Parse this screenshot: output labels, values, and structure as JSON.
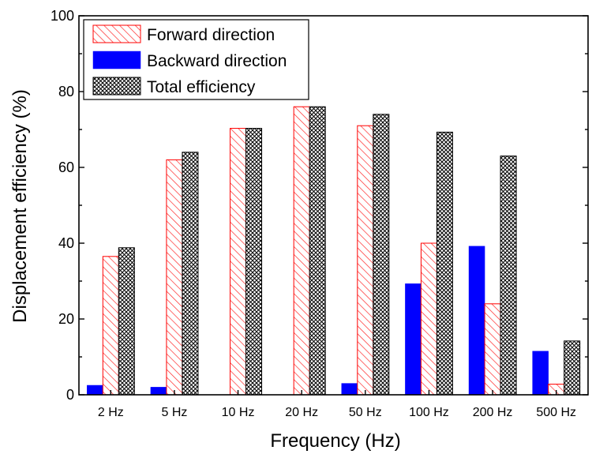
{
  "chart_data": {
    "type": "bar",
    "title": "",
    "xlabel": "Frequency (Hz)",
    "ylabel": "Displacement efficiency (%)",
    "ylim": [
      0,
      100
    ],
    "yticks": [
      0,
      20,
      40,
      60,
      80,
      100
    ],
    "categories": [
      "2 Hz",
      "5 Hz",
      "10 Hz",
      "20 Hz",
      "50 Hz",
      "100 Hz",
      "200 Hz",
      "500 Hz"
    ],
    "series": [
      {
        "name": "Backward direction",
        "values": [
          2.5,
          2.0,
          0,
          0,
          3.0,
          29.3,
          39.2,
          11.5
        ],
        "style": "solid",
        "color": "#0000ff"
      },
      {
        "name": "Forward direction",
        "values": [
          36.5,
          62.0,
          70.3,
          76.0,
          71.0,
          40.0,
          24.0,
          2.8
        ],
        "style": "hatch",
        "color": "#ff0000"
      },
      {
        "name": "Total efficiency",
        "values": [
          38.8,
          64.0,
          70.3,
          76.0,
          74.0,
          69.3,
          63.0,
          14.2
        ],
        "style": "crosshatch",
        "color": "#000000"
      }
    ],
    "legend": {
      "placement": "top-left",
      "order": [
        "Forward direction",
        "Backward direction",
        "Total efficiency"
      ]
    },
    "grid": false
  }
}
